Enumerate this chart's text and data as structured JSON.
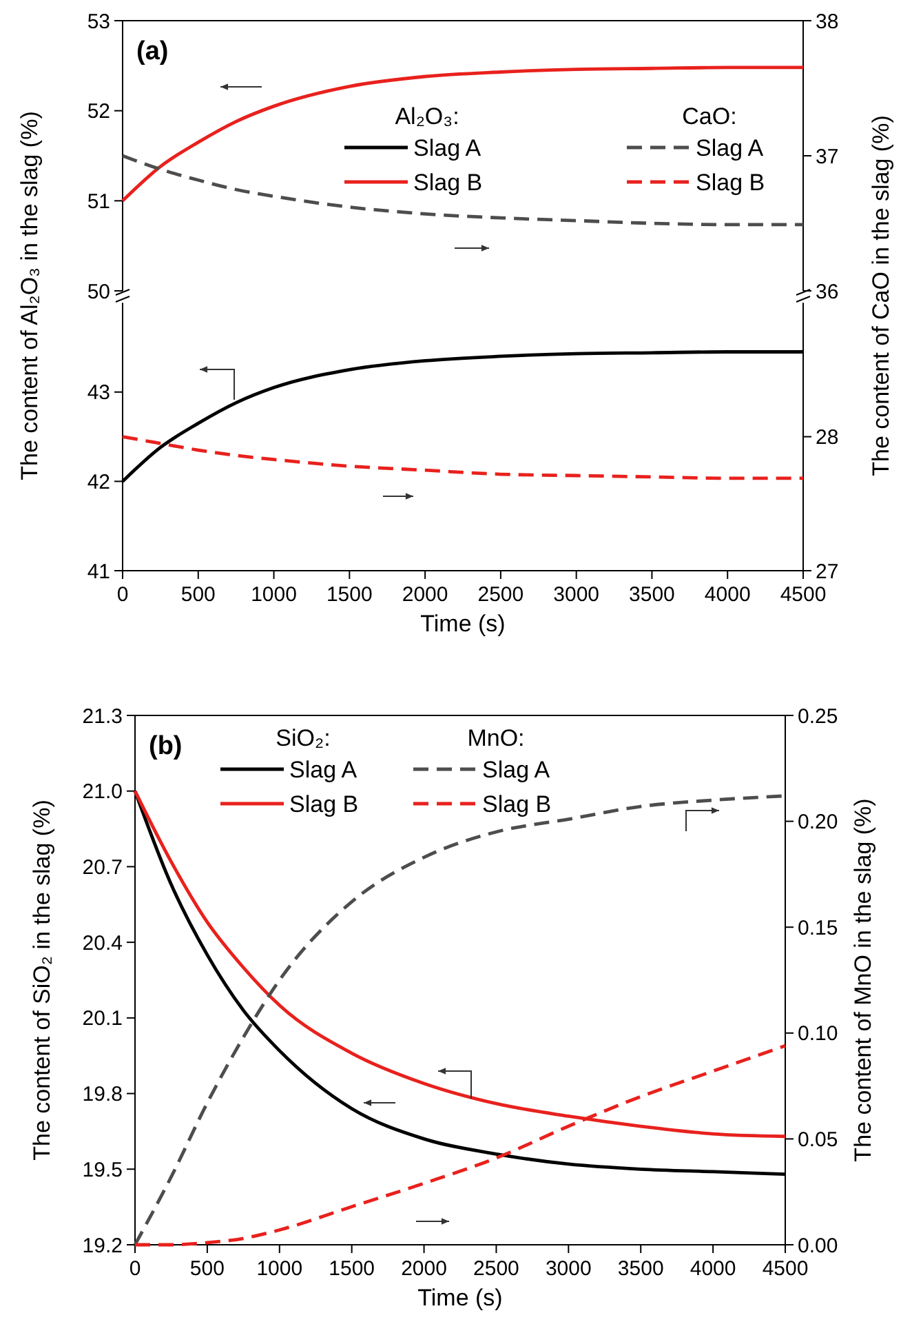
{
  "chart_data": [
    {
      "type": "line",
      "ylabel": "The content of Al₂O₃ in the slag (%)",
      "y2label": "The content of CaO in the slag (%)",
      "annotations": [
        "(a)",
        "Al₂O₃:",
        "CaO:"
      ],
      "legend": "right",
      "tick_labels": "y",
      "x": [
        0,
        250,
        500,
        750,
        1000,
        1500,
        2000,
        2500,
        3000,
        3500,
        4000,
        4500
      ],
      "xlim": [
        0,
        4500
      ],
      "ylim": [
        50,
        53
      ],
      "yticks": [
        50,
        51,
        52,
        53
      ],
      "y2lim": [
        36,
        38
      ],
      "y2ticks": [
        36,
        37,
        38
      ],
      "series": [
        {
          "name": "Slag B",
          "color": "#e8211d",
          "axis": "y",
          "line_style": "solid",
          "values": [
            51.0,
            51.38,
            51.65,
            51.88,
            52.05,
            52.27,
            52.38,
            52.43,
            52.46,
            52.47,
            52.48,
            52.48
          ]
        },
        {
          "name": "Slag A",
          "color": "#4d4d4d",
          "axis": "y2",
          "line_style": "dashed",
          "values": [
            37.0,
            36.9,
            36.82,
            36.75,
            36.7,
            36.62,
            36.57,
            36.54,
            36.52,
            36.5,
            36.49,
            36.49
          ]
        }
      ]
    },
    {
      "type": "line",
      "xlabel": "Time (s)",
      "legend": "top right",
      "x": [
        0,
        250,
        500,
        750,
        1000,
        1500,
        2000,
        2500,
        3000,
        3500,
        4000,
        4500
      ],
      "xlim": [
        0,
        4500
      ],
      "xticks": [
        0,
        500,
        1000,
        1500,
        2000,
        2500,
        3000,
        3500,
        4000,
        4500
      ],
      "ylim": [
        41,
        44
      ],
      "yticks": [
        41,
        42,
        43
      ],
      "y2lim": [
        27,
        29
      ],
      "y2ticks": [
        27,
        28
      ],
      "series": [
        {
          "name": "Slag A",
          "color": "#000000",
          "axis": "y",
          "line_style": "solid",
          "values": [
            42.0,
            42.38,
            42.65,
            42.88,
            43.05,
            43.25,
            43.35,
            43.4,
            43.43,
            43.44,
            43.45,
            43.45
          ]
        },
        {
          "name": "Slag B",
          "color": "#e8211d",
          "axis": "y2",
          "line_style": "dashed",
          "values": [
            28.0,
            27.95,
            27.9,
            27.86,
            27.83,
            27.78,
            27.75,
            27.72,
            27.71,
            27.7,
            27.69,
            27.69
          ]
        }
      ]
    },
    {
      "type": "line",
      "xlabel": "Time (s)",
      "ylabel": "The content of SiO₂ in the slag (%)",
      "y2label": "The content of MnO in the slag (%)",
      "annotations": [
        "(b)",
        "SiO₂:",
        "MnO:"
      ],
      "legend": "top left",
      "x": [
        0,
        250,
        500,
        750,
        1000,
        1500,
        2000,
        2500,
        3000,
        3500,
        4000,
        4500
      ],
      "xlim": [
        0,
        4500
      ],
      "xticks": [
        0,
        500,
        1000,
        1500,
        2000,
        2500,
        3000,
        3500,
        4000,
        4500
      ],
      "ylim": [
        19.2,
        21.3
      ],
      "yticks": [
        19.2,
        19.5,
        19.8,
        20.1,
        20.4,
        20.7,
        {
          "value": 21,
          "label": "21.0"
        },
        21.3
      ],
      "y2lim": [
        0,
        0.25
      ],
      "y2ticks": [
        {
          "value": 0,
          "label": "0.00"
        },
        {
          "value": 0.05,
          "label": "0.05"
        },
        {
          "value": 0.1,
          "label": "0.10"
        },
        {
          "value": 0.15,
          "label": "0.15"
        },
        {
          "value": 0.2,
          "label": "0.20"
        },
        {
          "value": 0.25,
          "label": "0.25"
        }
      ],
      "series": [
        {
          "name": "Slag A",
          "color": "#000000",
          "axis": "y",
          "line_style": "solid",
          "values": [
            21.0,
            20.63,
            20.35,
            20.13,
            19.97,
            19.74,
            19.62,
            19.56,
            19.52,
            19.5,
            19.49,
            19.48
          ]
        },
        {
          "name": "Slag B",
          "color": "#e8211d",
          "axis": "y",
          "line_style": "solid",
          "values": [
            21.0,
            20.72,
            20.48,
            20.3,
            20.15,
            19.96,
            19.84,
            19.76,
            19.71,
            19.67,
            19.64,
            19.63
          ]
        },
        {
          "name": "Slag A",
          "color": "#4d4d4d",
          "axis": "y2",
          "line_style": "dashed",
          "values": [
            0,
            0.032,
            0.067,
            0.098,
            0.125,
            0.162,
            0.183,
            0.195,
            0.201,
            0.207,
            0.21,
            0.212
          ]
        },
        {
          "name": "Slag B",
          "color": "#e8211d",
          "axis": "y2",
          "line_style": "dashed",
          "values": [
            0,
            0,
            0.001,
            0.003,
            0.007,
            0.018,
            0.029,
            0.041,
            0.056,
            0.07,
            0.082,
            0.094
          ]
        }
      ]
    }
  ]
}
